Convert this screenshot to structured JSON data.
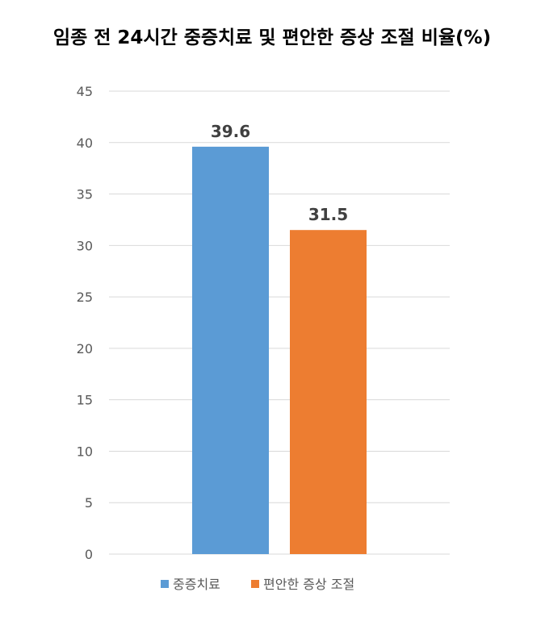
{
  "chart_data": {
    "type": "bar",
    "title": "임종 전 24시간 중증치료 및 편안한 증상 조절 비율(%)",
    "xlabel": "",
    "ylabel": "",
    "ylim": [
      0,
      45
    ],
    "yticks": [
      0,
      5,
      10,
      15,
      20,
      25,
      30,
      35,
      40,
      45
    ],
    "grid": true,
    "legend_position": "bottom",
    "series": [
      {
        "name": "중증치료",
        "value": 39.6,
        "label": "39.6",
        "color": "#5b9bd5"
      },
      {
        "name": "편안한 증상 조절",
        "value": 31.5,
        "label": "31.5",
        "color": "#ed7d31"
      }
    ]
  }
}
